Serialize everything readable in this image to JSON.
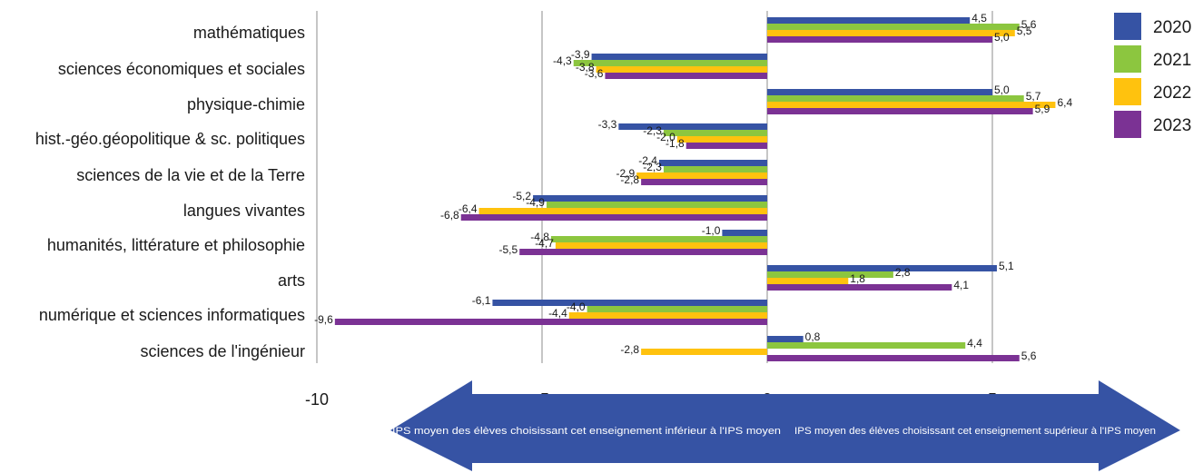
{
  "chart_data": {
    "type": "bar",
    "orientation": "horizontal",
    "categories": [
      "mathématiques",
      "sciences économiques et sociales",
      "physique-chimie",
      "hist.-géo.géopolitique & sc. politiques",
      "sciences de la vie et de la Terre",
      "langues vivantes",
      "humanités, littérature et philosophie",
      "arts",
      "numérique et sciences informatiques",
      "sciences de l'ingénieur"
    ],
    "series": [
      {
        "name": "2020",
        "color": "#3653A4",
        "values": [
          4.5,
          -3.9,
          5.0,
          -3.3,
          -2.4,
          -5.2,
          -1.0,
          5.1,
          -6.1,
          0.8
        ],
        "labels": [
          "4,5",
          "-3,9",
          "5,0",
          "-3,3",
          "-2,4",
          "-5,2",
          "-1,0",
          "5,1",
          "-6,1",
          "0,8"
        ]
      },
      {
        "name": "2021",
        "color": "#8CC63F",
        "values": [
          5.6,
          -4.3,
          5.7,
          -2.3,
          -2.3,
          -4.9,
          -4.8,
          2.8,
          -4.0,
          4.4
        ],
        "labels": [
          "5,6",
          "-4,3",
          "5,7",
          "-2,3",
          "-2,3",
          "-4,9",
          "-4,8",
          "2,8",
          "-4,0",
          "4,4"
        ]
      },
      {
        "name": "2022",
        "color": "#FFC20E",
        "values": [
          5.5,
          -3.8,
          6.4,
          -2.0,
          -2.9,
          -6.4,
          -4.7,
          1.8,
          -4.4,
          -2.8
        ],
        "labels": [
          "5,5",
          "-3,8",
          "6,4",
          "-2,0",
          "-2,9",
          "-6,4",
          "-4,7",
          "1,8",
          "-4,4",
          "-2,8"
        ]
      },
      {
        "name": "2023",
        "color": "#7B3294",
        "values": [
          5.0,
          -3.6,
          5.9,
          -1.8,
          -2.8,
          -6.8,
          -5.5,
          4.1,
          -9.6,
          5.6
        ],
        "labels": [
          "5,0",
          "-3,6",
          "5,9",
          "-1,8",
          "-2,8",
          "-6,8",
          "-5,5",
          "4,1",
          "-9,6",
          "5,6"
        ]
      }
    ],
    "xlim": [
      -10,
      6
    ],
    "xticks": [
      -10,
      -5,
      0,
      5
    ],
    "xtick_labels": [
      "-10",
      "-5",
      "0",
      "5"
    ],
    "grid": "vertical",
    "legend": "right",
    "arrow": {
      "color": "#3653A4",
      "left_text": "IPS moyen des élèves choisissant cet enseignement inférieur à l'IPS moyen",
      "right_text": "IPS moyen des élèves choisissant cet enseignement supérieur à l'IPS moyen"
    }
  }
}
